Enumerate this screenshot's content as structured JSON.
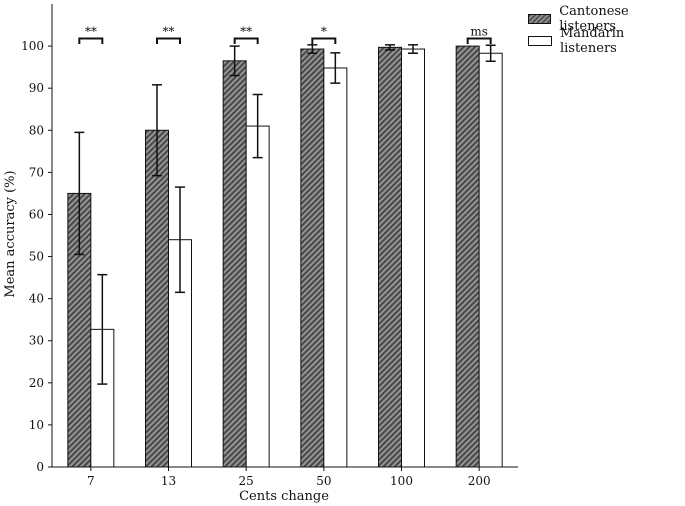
{
  "chart_data": {
    "type": "bar",
    "categories": [
      "7",
      "13",
      "25",
      "50",
      "100",
      "200"
    ],
    "series": [
      {
        "name": "Cantonese listeners",
        "values": [
          65,
          80,
          96.5,
          99.3,
          99.7,
          100
        ],
        "err": [
          14.5,
          10.8,
          3.5,
          1.0,
          0.6,
          0.0
        ],
        "fill": "#6b6b6b",
        "hatched": true
      },
      {
        "name": "Mandarin listeners",
        "values": [
          32.7,
          54,
          81,
          94.8,
          99.3,
          98.3
        ],
        "err": [
          13,
          12.5,
          7.5,
          3.6,
          1.0,
          1.9
        ],
        "fill": "#ffffff",
        "hatched": false
      }
    ],
    "significance": [
      "**",
      "**",
      "**",
      "*",
      "",
      "ms"
    ],
    "xlabel": "Cents change",
    "ylabel": "Mean accuracy (%)",
    "ylim": [
      0,
      110
    ],
    "yticks": [
      0,
      10,
      20,
      30,
      40,
      50,
      60,
      70,
      80,
      90,
      100
    ],
    "legend_position": "top-right"
  }
}
